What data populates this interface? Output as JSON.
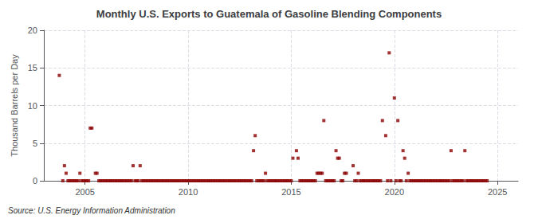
{
  "chart_data": {
    "type": "scatter",
    "title": "Monthly U.S. Exports to Guatemala of Gasoline Blending Components",
    "ylabel": "Thousand Barrels per Day",
    "annotation": "Source: U.S. Energy Information Administration",
    "color": "#8b0000",
    "marker": "square",
    "grid": true,
    "xlim": [
      2003.0,
      2026.0
    ],
    "ylim": [
      0,
      20
    ],
    "xticks": [
      2005,
      2010,
      2015,
      2020,
      2025
    ],
    "yticks": [
      0,
      5,
      10,
      15,
      20
    ],
    "x": [
      2003.75,
      2003.92,
      2004.0,
      2004.08,
      2004.75,
      2005.25,
      2005.33,
      2005.5,
      2005.58,
      2007.33,
      2007.67,
      2013.17,
      2013.25,
      2013.75,
      2015.08,
      2015.25,
      2015.33,
      2016.0,
      2016.08,
      2016.17,
      2016.25,
      2016.33,
      2016.42,
      2016.5,
      2016.58,
      2016.67,
      2017.0,
      2017.08,
      2017.17,
      2017.25,
      2017.33,
      2017.42,
      2017.5,
      2017.58,
      2017.67,
      2018.0,
      2018.17,
      2018.25,
      2019.0,
      2019.08,
      2019.42,
      2019.58,
      2019.67,
      2019.75,
      2019.83,
      2020.0,
      2020.08,
      2020.17,
      2020.25,
      2020.33,
      2020.42,
      2020.5,
      2020.58,
      2020.67,
      2022.75,
      2023.42,
      2004.17,
      2004.25,
      2004.33,
      2004.42,
      2004.5,
      2004.58,
      2004.67,
      2004.83,
      2004.92,
      2005.0,
      2005.08,
      2005.17,
      2005.67,
      2005.75,
      2005.83,
      2005.92,
      2006.0,
      2006.08,
      2006.17,
      2006.25,
      2006.33,
      2006.42,
      2006.5,
      2006.58,
      2006.67,
      2006.75,
      2006.83,
      2006.92,
      2007.0,
      2007.08,
      2007.17,
      2007.25,
      2007.42,
      2007.5,
      2007.58,
      2007.75,
      2007.83,
      2007.92,
      2008.0,
      2008.08,
      2008.17,
      2008.25,
      2008.33,
      2008.42,
      2008.5,
      2008.58,
      2008.67,
      2008.75,
      2008.83,
      2008.92,
      2009.0,
      2009.08,
      2009.17,
      2009.25,
      2009.33,
      2009.42,
      2009.5,
      2009.58,
      2009.67,
      2009.75,
      2009.83,
      2009.92,
      2010.0,
      2010.08,
      2010.17,
      2010.25,
      2010.33,
      2010.42,
      2010.5,
      2010.58,
      2010.67,
      2010.75,
      2010.83,
      2010.92,
      2011.0,
      2011.08,
      2011.17,
      2011.25,
      2011.33,
      2011.42,
      2011.5,
      2011.58,
      2011.67,
      2011.75,
      2011.83,
      2011.92,
      2012.0,
      2012.08,
      2012.17,
      2012.25,
      2012.33,
      2012.42,
      2012.5,
      2012.58,
      2012.67,
      2012.75,
      2012.83,
      2012.92,
      2013.0,
      2013.08,
      2013.33,
      2013.42,
      2013.5,
      2013.58,
      2013.67,
      2013.83,
      2013.92,
      2014.0,
      2014.08,
      2014.17,
      2014.25,
      2014.33,
      2014.42,
      2014.5,
      2014.58,
      2014.67,
      2014.75,
      2014.83,
      2014.92,
      2015.0,
      2015.42,
      2015.5,
      2015.58,
      2015.67,
      2015.75,
      2015.83,
      2015.92,
      2018.08,
      2018.33,
      2018.42,
      2018.5,
      2018.58,
      2018.67,
      2018.75,
      2018.83,
      2018.92,
      2021.0,
      2021.08,
      2021.17,
      2021.25,
      2021.33,
      2021.42,
      2021.5,
      2021.58,
      2021.67,
      2021.75,
      2021.83,
      2021.92,
      2022.0,
      2022.08,
      2022.17,
      2022.25,
      2022.33,
      2022.42,
      2022.5,
      2022.58,
      2022.67,
      2022.83,
      2022.92,
      2023.0,
      2023.08,
      2023.17,
      2023.25,
      2023.33,
      2023.5,
      2023.58,
      2023.67,
      2023.75,
      2023.83,
      2023.92,
      2024.0,
      2024.08,
      2024.17,
      2024.25,
      2024.33,
      2024.42,
      2024.5,
      2019.17,
      2019.25,
      2019.33,
      2016.75,
      2016.83,
      2016.92,
      2020.75,
      2020.83,
      2020.92
    ],
    "values": [
      14.0,
      0.0,
      2.0,
      1.0,
      1.0,
      7.0,
      7.0,
      1.0,
      1.0,
      2.0,
      2.0,
      4.0,
      6.0,
      1.0,
      3.0,
      4.0,
      3.0,
      0.0,
      0.0,
      0.0,
      1.0,
      1.0,
      1.0,
      1.0,
      8.0,
      0.0,
      0.0,
      0.0,
      4.0,
      3.0,
      3.0,
      0.0,
      0.0,
      1.0,
      1.0,
      2.0,
      0.0,
      1.0,
      0.0,
      0.0,
      8.0,
      6.0,
      0.0,
      17.0,
      0.0,
      11.0,
      0.0,
      8.0,
      0.0,
      0.0,
      4.0,
      3.0,
      0.0,
      1.0,
      4.0,
      4.0,
      0.0,
      0.0,
      0.0,
      0.0,
      0.0,
      0.0,
      0.0,
      0.0,
      0.0,
      0.0,
      0.0,
      0.0,
      0.0,
      0.0,
      0.0,
      0.0,
      0.0,
      0.0,
      0.0,
      0.0,
      0.0,
      0.0,
      0.0,
      0.0,
      0.0,
      0.0,
      0.0,
      0.0,
      0.0,
      0.0,
      0.0,
      0.0,
      0.0,
      0.0,
      0.0,
      0.0,
      0.0,
      0.0,
      0.0,
      0.0,
      0.0,
      0.0,
      0.0,
      0.0,
      0.0,
      0.0,
      0.0,
      0.0,
      0.0,
      0.0,
      0.0,
      0.0,
      0.0,
      0.0,
      0.0,
      0.0,
      0.0,
      0.0,
      0.0,
      0.0,
      0.0,
      0.0,
      0.0,
      0.0,
      0.0,
      0.0,
      0.0,
      0.0,
      0.0,
      0.0,
      0.0,
      0.0,
      0.0,
      0.0,
      0.0,
      0.0,
      0.0,
      0.0,
      0.0,
      0.0,
      0.0,
      0.0,
      0.0,
      0.0,
      0.0,
      0.0,
      0.0,
      0.0,
      0.0,
      0.0,
      0.0,
      0.0,
      0.0,
      0.0,
      0.0,
      0.0,
      0.0,
      0.0,
      0.0,
      0.0,
      0.0,
      0.0,
      0.0,
      0.0,
      0.0,
      0.0,
      0.0,
      0.0,
      0.0,
      0.0,
      0.0,
      0.0,
      0.0,
      0.0,
      0.0,
      0.0,
      0.0,
      0.0,
      0.0,
      0.0,
      0.0,
      0.0,
      0.0,
      0.0,
      0.0,
      0.0,
      0.0,
      0.0,
      0.0,
      0.0,
      0.0,
      0.0,
      0.0,
      0.0,
      0.0,
      0.0,
      0.0,
      0.0,
      0.0,
      0.0,
      0.0,
      0.0,
      0.0,
      0.0,
      0.0,
      0.0,
      0.0,
      0.0,
      0.0,
      0.0,
      0.0,
      0.0,
      0.0,
      0.0,
      0.0,
      0.0,
      0.0,
      0.0,
      0.0,
      0.0,
      0.0,
      0.0,
      0.0,
      0.0,
      0.0,
      0.0,
      0.0,
      0.0,
      0.0,
      0.0,
      0.0,
      0.0,
      0.0,
      0.0,
      0.0,
      0.0,
      0.0,
      0.0,
      0.0,
      0.0,
      0.0,
      0.0,
      0.0,
      0.0,
      0.0,
      0.0
    ]
  }
}
